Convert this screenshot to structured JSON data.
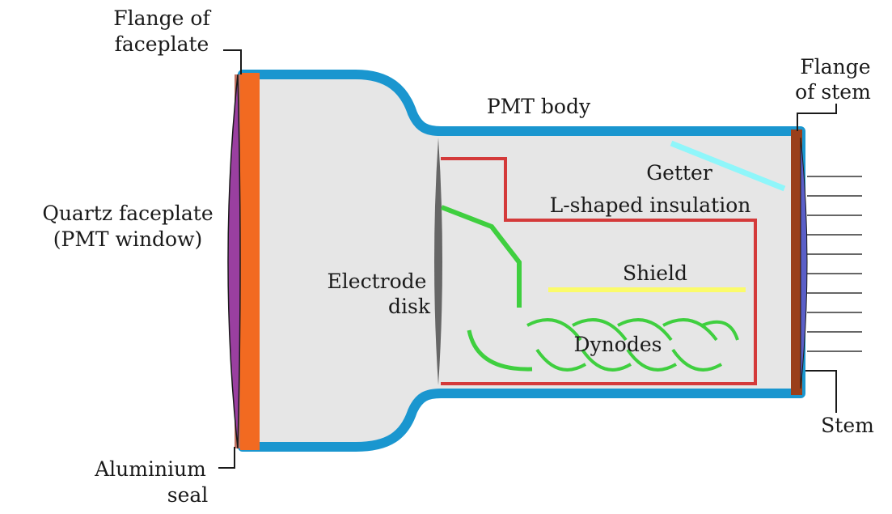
{
  "labels": {
    "flange_faceplate": [
      "Flange of",
      "faceplate"
    ],
    "quartz_faceplate": [
      "Quartz faceplate",
      "(PMT window)"
    ],
    "aluminium_seal": [
      "Aluminium",
      "seal"
    ],
    "electrode_disk": [
      "Electrode",
      "disk"
    ],
    "pmt_body": "PMT body",
    "getter": "Getter",
    "l_shaped_insulation": "L-shaped insulation",
    "shield": "Shield",
    "dynodes": "Dynodes",
    "flange_stem": [
      "Flange",
      "of stem"
    ],
    "stem": "Stem"
  },
  "colors": {
    "body_outline": "#1a96cf",
    "body_fill": "#e6e6e6",
    "flange_faceplate": "#f26a21",
    "quartz": "#9a3fa0",
    "electrode_disk": "#666666",
    "insulation": "#d43a3a",
    "dynodes": "#3fcf3f",
    "shield": "#fbfb6a",
    "getter": "#8ff6fa",
    "flange_stem": "#9a3f1a",
    "stem": "#5a5fc8",
    "pins": "#333333"
  }
}
